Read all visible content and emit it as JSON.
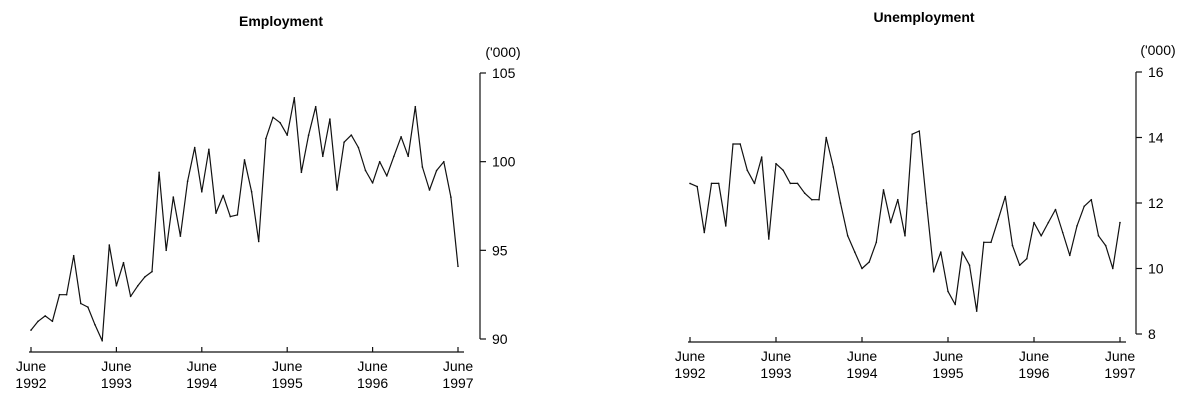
{
  "chart_data": [
    {
      "type": "line",
      "title": "Employment",
      "unit": "('000)",
      "xlabel": "",
      "ylabel": "",
      "ylim": [
        90,
        105
      ],
      "y_ticks": [
        "90",
        "95",
        "100",
        "105"
      ],
      "x_ticks": [
        {
          "month": "June",
          "year": "1992"
        },
        {
          "month": "June",
          "year": "1993"
        },
        {
          "month": "June",
          "year": "1994"
        },
        {
          "month": "June",
          "year": "1995"
        },
        {
          "month": "June",
          "year": "1996"
        },
        {
          "month": "June",
          "year": "1997"
        }
      ],
      "xlim": [
        "1992-06",
        "1997-06"
      ],
      "grid": false,
      "x": [
        "1992-06",
        "1992-07",
        "1992-08",
        "1992-09",
        "1992-10",
        "1992-11",
        "1992-12",
        "1993-01",
        "1993-02",
        "1993-03",
        "1993-04",
        "1993-05",
        "1993-06",
        "1993-07",
        "1993-08",
        "1993-09",
        "1993-10",
        "1993-11",
        "1993-12",
        "1994-01",
        "1994-02",
        "1994-03",
        "1994-04",
        "1994-05",
        "1994-06",
        "1994-07",
        "1994-08",
        "1994-09",
        "1994-10",
        "1994-11",
        "1994-12",
        "1995-01",
        "1995-02",
        "1995-03",
        "1995-04",
        "1995-05",
        "1995-06",
        "1995-07",
        "1995-08",
        "1995-09",
        "1995-10",
        "1995-11",
        "1995-12",
        "1996-01",
        "1996-02",
        "1996-03",
        "1996-04",
        "1996-05",
        "1996-06",
        "1996-07",
        "1996-08",
        "1996-09",
        "1996-10",
        "1996-11",
        "1996-12",
        "1997-01",
        "1997-02",
        "1997-03",
        "1997-04",
        "1997-05",
        "1997-06"
      ],
      "series": [
        {
          "values": [
            90.5,
            91.0,
            91.3,
            91.0,
            92.5,
            92.5,
            94.7,
            92.0,
            91.8,
            90.8,
            89.9,
            95.3,
            93.0,
            94.3,
            92.4,
            93.0,
            93.5,
            93.8,
            99.4,
            95.0,
            98.0,
            95.8,
            98.9,
            100.8,
            98.3,
            100.7,
            97.1,
            98.1,
            96.9,
            97.0,
            100.1,
            98.3,
            95.5,
            101.3,
            102.5,
            102.2,
            101.5,
            103.6,
            99.4,
            101.5,
            103.1,
            100.3,
            102.4,
            98.4,
            101.1,
            101.5,
            100.8,
            99.5,
            98.8,
            100.0,
            99.2,
            100.3,
            101.4,
            100.3,
            103.1,
            99.7,
            98.4,
            99.5,
            100.0,
            98.0,
            94.1
          ]
        }
      ]
    },
    {
      "type": "line",
      "title": "Unemployment",
      "unit": "('000)",
      "xlabel": "",
      "ylabel": "",
      "ylim": [
        8,
        16
      ],
      "y_ticks": [
        "8",
        "10",
        "12",
        "14",
        "16"
      ],
      "x_ticks": [
        {
          "month": "June",
          "year": "1992"
        },
        {
          "month": "June",
          "year": "1993"
        },
        {
          "month": "June",
          "year": "1994"
        },
        {
          "month": "June",
          "year": "1995"
        },
        {
          "month": "June",
          "year": "1996"
        },
        {
          "month": "June",
          "year": "1997"
        }
      ],
      "xlim": [
        "1992-06",
        "1997-06"
      ],
      "grid": false,
      "x": [
        "1992-06",
        "1992-07",
        "1992-08",
        "1992-09",
        "1992-10",
        "1992-11",
        "1992-12",
        "1993-01",
        "1993-02",
        "1993-03",
        "1993-04",
        "1993-05",
        "1993-06",
        "1993-07",
        "1993-08",
        "1993-09",
        "1993-10",
        "1993-11",
        "1993-12",
        "1994-01",
        "1994-02",
        "1994-03",
        "1994-04",
        "1994-05",
        "1994-06",
        "1994-07",
        "1994-08",
        "1994-09",
        "1994-10",
        "1994-11",
        "1994-12",
        "1995-01",
        "1995-02",
        "1995-03",
        "1995-04",
        "1995-05",
        "1995-06",
        "1995-07",
        "1995-08",
        "1995-09",
        "1995-10",
        "1995-11",
        "1995-12",
        "1996-01",
        "1996-02",
        "1996-03",
        "1996-04",
        "1996-05",
        "1996-06",
        "1996-07",
        "1996-08",
        "1996-09",
        "1996-10",
        "1996-11",
        "1996-12",
        "1997-01",
        "1997-02",
        "1997-03",
        "1997-04",
        "1997-05",
        "1997-06"
      ],
      "series": [
        {
          "values": [
            12.6,
            12.5,
            11.1,
            12.6,
            12.6,
            11.3,
            13.8,
            13.8,
            13.0,
            12.6,
            13.4,
            10.9,
            13.2,
            13.0,
            12.6,
            12.6,
            12.3,
            12.1,
            12.1,
            14.0,
            13.1,
            12.0,
            11.0,
            10.5,
            10.0,
            10.2,
            10.8,
            12.4,
            11.4,
            12.1,
            11.0,
            14.1,
            14.2,
            12.0,
            9.9,
            10.5,
            9.3,
            8.9,
            10.5,
            10.1,
            8.7,
            10.8,
            10.8,
            11.5,
            12.2,
            10.7,
            10.1,
            10.3,
            11.4,
            11.0,
            11.4,
            11.8,
            11.1,
            10.4,
            11.3,
            11.9,
            12.1,
            11.0,
            10.7,
            10.0,
            11.4
          ]
        }
      ]
    }
  ]
}
